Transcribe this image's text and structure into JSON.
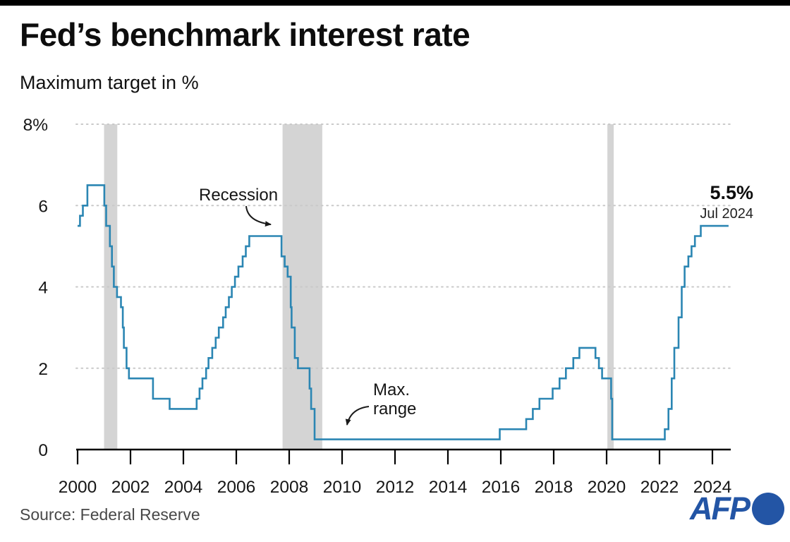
{
  "header": {
    "title": "Fed’s benchmark interest rate",
    "subtitle": "Maximum target in %"
  },
  "annotations": {
    "recession": "Recession",
    "max_range_line1": "Max.",
    "max_range_line2": "range",
    "end_value": "5.5%",
    "end_date": "Jul 2024"
  },
  "footer": {
    "source": "Source: Federal Reserve",
    "logo_text": "AFP"
  },
  "colors": {
    "line": "#2b86b3",
    "band": "#d4d4d4",
    "grid": "#c9c9c9",
    "axis": "#000000",
    "tick_label": "#161616",
    "afp_blue": "#2355a5"
  },
  "chart_data": {
    "type": "line",
    "step": true,
    "title": "Fed’s benchmark interest rate",
    "subtitle": "Maximum target in %",
    "unit": "%",
    "xlim": [
      1999.95,
      2024.7
    ],
    "ylim": [
      0,
      8
    ],
    "grid": "dotted-horizontal",
    "x_ticks": [
      2000,
      2002,
      2004,
      2006,
      2008,
      2010,
      2012,
      2014,
      2016,
      2018,
      2020,
      2022,
      2024
    ],
    "y_ticks": [
      {
        "v": 8,
        "label": "8%"
      },
      {
        "v": 6,
        "label": "6"
      },
      {
        "v": 4,
        "label": "4"
      },
      {
        "v": 2,
        "label": "2"
      },
      {
        "v": 0,
        "label": "0"
      }
    ],
    "recessions": [
      [
        2001.0,
        2001.5
      ],
      [
        2007.75,
        2009.25
      ],
      [
        2020.03,
        2020.27
      ]
    ],
    "line_end_year": 2024.61,
    "end_label": {
      "value": "5.5%",
      "date": "Jul 2024"
    },
    "series": [
      {
        "name": "Fed benchmark rate (maximum target, %)",
        "points": [
          [
            2000.0,
            5.5
          ],
          [
            2000.09,
            5.75
          ],
          [
            2000.2,
            6.0
          ],
          [
            2000.37,
            6.5
          ],
          [
            2001.01,
            6.0
          ],
          [
            2001.08,
            5.5
          ],
          [
            2001.22,
            5.0
          ],
          [
            2001.3,
            4.5
          ],
          [
            2001.37,
            4.0
          ],
          [
            2001.49,
            3.75
          ],
          [
            2001.64,
            3.5
          ],
          [
            2001.71,
            3.0
          ],
          [
            2001.75,
            2.5
          ],
          [
            2001.85,
            2.0
          ],
          [
            2001.94,
            1.75
          ],
          [
            2002.85,
            1.25
          ],
          [
            2003.48,
            1.0
          ],
          [
            2004.5,
            1.25
          ],
          [
            2004.61,
            1.5
          ],
          [
            2004.72,
            1.75
          ],
          [
            2004.86,
            2.0
          ],
          [
            2004.95,
            2.25
          ],
          [
            2005.09,
            2.5
          ],
          [
            2005.22,
            2.75
          ],
          [
            2005.34,
            3.0
          ],
          [
            2005.5,
            3.25
          ],
          [
            2005.6,
            3.5
          ],
          [
            2005.72,
            3.75
          ],
          [
            2005.83,
            4.0
          ],
          [
            2005.95,
            4.25
          ],
          [
            2006.08,
            4.5
          ],
          [
            2006.24,
            4.75
          ],
          [
            2006.36,
            5.0
          ],
          [
            2006.49,
            5.25
          ],
          [
            2007.71,
            4.75
          ],
          [
            2007.83,
            4.5
          ],
          [
            2007.94,
            4.25
          ],
          [
            2008.06,
            3.5
          ],
          [
            2008.09,
            3.0
          ],
          [
            2008.21,
            2.25
          ],
          [
            2008.33,
            2.0
          ],
          [
            2008.77,
            1.5
          ],
          [
            2008.83,
            1.0
          ],
          [
            2008.96,
            0.25
          ],
          [
            2015.96,
            0.5
          ],
          [
            2016.96,
            0.75
          ],
          [
            2017.21,
            1.0
          ],
          [
            2017.46,
            1.25
          ],
          [
            2017.96,
            1.5
          ],
          [
            2018.22,
            1.75
          ],
          [
            2018.46,
            2.0
          ],
          [
            2018.74,
            2.25
          ],
          [
            2018.97,
            2.5
          ],
          [
            2019.58,
            2.25
          ],
          [
            2019.71,
            2.0
          ],
          [
            2019.83,
            1.75
          ],
          [
            2020.17,
            1.25
          ],
          [
            2020.21,
            0.25
          ],
          [
            2022.2,
            0.5
          ],
          [
            2022.34,
            1.0
          ],
          [
            2022.46,
            1.75
          ],
          [
            2022.56,
            2.5
          ],
          [
            2022.72,
            3.25
          ],
          [
            2022.84,
            4.0
          ],
          [
            2022.95,
            4.5
          ],
          [
            2023.09,
            4.75
          ],
          [
            2023.21,
            5.0
          ],
          [
            2023.34,
            5.25
          ],
          [
            2023.56,
            5.5
          ]
        ]
      }
    ]
  }
}
